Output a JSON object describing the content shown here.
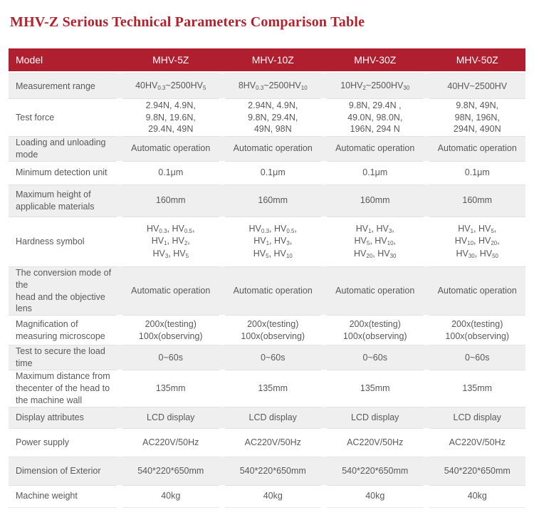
{
  "title": "MHV-Z Serious Technical Parameters Comparison Table",
  "colors": {
    "title_text": "#b3212c",
    "header_bg": "#b01f2f",
    "header_text": "#ffffff",
    "shaded_row_bg": "#efefef",
    "body_text": "#595959",
    "separator_line": "#e2e2e2"
  },
  "table": {
    "header": [
      "Model",
      "MHV-5Z",
      "MHV-10Z",
      "MHV-30Z",
      "MHV-50Z"
    ],
    "rows": [
      {
        "label": "Measurement range",
        "values": [
          "40HV_{0.3}~2500HV_{5}",
          "8HV_{0.3}~2500HV_{10}",
          "10HV_{2}~2500HV_{30}",
          "40HV~2500HV"
        ]
      },
      {
        "label": "Test force",
        "values": [
          [
            "2.94N, 4.9N,",
            "9.8N, 19.6N,",
            "29.4N, 49N"
          ],
          [
            "2.94N, 4.9N,",
            "9.8N, 29.4N,",
            "49N, 98N"
          ],
          [
            "9.8N, 29.4N ,",
            "49.0N, 98.0N,",
            "196N, 294 N"
          ],
          [
            "9.8N, 49N,",
            "98N, 196N,",
            "294N, 490N"
          ]
        ]
      },
      {
        "label": "Loading and unloading mode",
        "values": [
          "Automatic operation",
          "Automatic operation",
          "Automatic operation",
          "Automatic operation"
        ]
      },
      {
        "label": "Minimum detection unit",
        "values": [
          "0.1μm",
          "0.1μm",
          "0.1μm",
          "0.1μm"
        ]
      },
      {
        "label": [
          "Maximum height of",
          "applicable materials"
        ],
        "values": [
          "160mm",
          "160mm",
          "160mm",
          "160mm"
        ]
      },
      {
        "label": "Hardness symbol",
        "values": [
          [
            "HV_{0.3}, HV_{0.5},",
            "HV_{1}, HV_{2},",
            "HV_{3}, HV_{5}"
          ],
          [
            "HV_{0.3}, HV_{0.5},",
            "HV_{1}, HV_{3},",
            "HV_{5}, HV_{10}"
          ],
          [
            "HV_{1}, HV_{3},",
            "HV_{5}, HV_{10},",
            "HV_{20}, HV_{30}"
          ],
          [
            "HV_{1}, HV_{5},",
            "HV_{10}, HV_{20},",
            "HV_{30}, HV_{50}"
          ]
        ]
      },
      {
        "label": [
          "The conversion mode of the",
          "head and the objective lens"
        ],
        "values": [
          "Automatic operation",
          "Automatic operation",
          "Automatic operation",
          "Automatic operation"
        ]
      },
      {
        "label": [
          "Magnification of",
          "measuring microscope"
        ],
        "values": [
          [
            "200x(testing)",
            "100x(observing)"
          ],
          [
            "200x(testing)",
            "100x(observing)"
          ],
          [
            "200x(testing)",
            "100x(observing)"
          ],
          [
            "200x(testing)",
            "100x(observing)"
          ]
        ]
      },
      {
        "label": "Test to secure the load time",
        "values": [
          "0~60s",
          "0~60s",
          "0~60s",
          "0~60s"
        ]
      },
      {
        "label": [
          "Maximum distance from",
          "thecenter of the head to",
          "the machine wall"
        ],
        "values": [
          "135mm",
          "135mm",
          "135mm",
          "135mm"
        ]
      },
      {
        "label": "Display attributes",
        "values": [
          "LCD display",
          "LCD display",
          "LCD display",
          "LCD display"
        ]
      },
      {
        "label": "Power supply",
        "values": [
          "AC220V/50Hz",
          "AC220V/50Hz",
          "AC220V/50Hz",
          "AC220V/50Hz"
        ]
      },
      {
        "label": "Dimension of Exterior",
        "values": [
          "540*220*650mm",
          "540*220*650mm",
          "540*220*650mm",
          "540*220*650mm"
        ]
      },
      {
        "label": "Machine weight",
        "values": [
          "40kg",
          "40kg",
          "40kg",
          "40kg"
        ]
      }
    ]
  }
}
